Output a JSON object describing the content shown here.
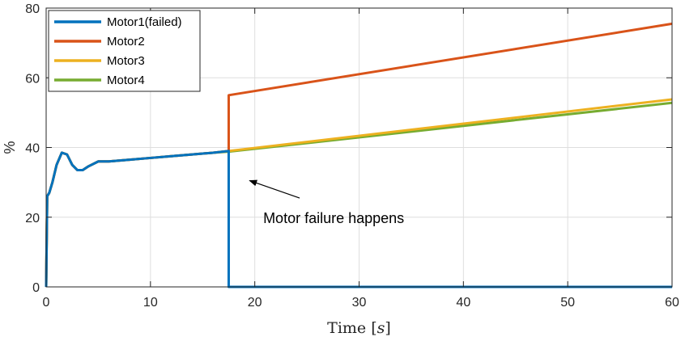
{
  "chart_data": {
    "type": "line",
    "title": "",
    "xlabel": "Time [s]",
    "xlabel_parts": {
      "main": "Time ",
      "lb": "[",
      "var": "s",
      "rb": "]"
    },
    "ylabel": "%",
    "xlim": [
      0,
      60
    ],
    "ylim": [
      0,
      80
    ],
    "xticks": [
      0,
      10,
      20,
      30,
      40,
      50,
      60
    ],
    "yticks": [
      0,
      20,
      40,
      60,
      80
    ],
    "grid": true,
    "legend": "top-left",
    "series": [
      {
        "name": "Motor1(failed)",
        "color": "#0072BD",
        "x": [
          0,
          0.1,
          0.3,
          0.6,
          1.0,
          1.5,
          2.0,
          2.5,
          3.0,
          3.5,
          4.0,
          5.0,
          6.0,
          8.0,
          10,
          12,
          14,
          16,
          17.5,
          17.5,
          60
        ],
        "y": [
          0,
          26,
          27,
          30,
          35,
          38.5,
          38,
          35,
          33.5,
          33.5,
          34.5,
          36,
          36,
          36.5,
          37,
          37.5,
          38,
          38.5,
          39,
          0,
          0
        ]
      },
      {
        "name": "Motor2",
        "color": "#D95319",
        "x": [
          0,
          0.1,
          0.3,
          0.6,
          1.0,
          1.5,
          2.0,
          2.5,
          3.0,
          3.5,
          4.0,
          5.0,
          6.0,
          8.0,
          10,
          12,
          14,
          16,
          17.5,
          17.5,
          60
        ],
        "y": [
          0,
          26,
          27,
          30,
          35,
          38.5,
          38,
          35,
          33.5,
          33.5,
          34.5,
          36,
          36,
          36.5,
          37,
          37.5,
          38,
          38.5,
          39,
          55,
          75.5
        ]
      },
      {
        "name": "Motor3",
        "color": "#EDB120",
        "x": [
          0,
          0.1,
          0.3,
          0.6,
          1.0,
          1.5,
          2.0,
          2.5,
          3.0,
          3.5,
          4.0,
          5.0,
          6.0,
          8.0,
          10,
          12,
          14,
          16,
          17.5,
          60
        ],
        "y": [
          0,
          26,
          27,
          30,
          35,
          38.5,
          38,
          35,
          33.5,
          33.5,
          34.5,
          36,
          36,
          36.5,
          37,
          37.5,
          38,
          38.5,
          39,
          53.8
        ]
      },
      {
        "name": "Motor4",
        "color": "#77AC30",
        "x": [
          0,
          0.1,
          0.3,
          0.6,
          1.0,
          1.5,
          2.0,
          2.5,
          3.0,
          3.5,
          4.0,
          5.0,
          6.0,
          8.0,
          10,
          12,
          14,
          16,
          17.5,
          60
        ],
        "y": [
          0,
          26,
          27,
          30,
          35,
          38.5,
          38,
          35,
          33.5,
          33.5,
          34.5,
          36,
          36,
          36.5,
          37,
          37.5,
          38,
          38.5,
          38.8,
          52.8
        ]
      }
    ],
    "annotations": [
      {
        "text": "Motor failure happens",
        "arrow_from": [
          24.3,
          25.5
        ],
        "arrow_to": [
          19.5,
          30.5
        ]
      }
    ]
  }
}
